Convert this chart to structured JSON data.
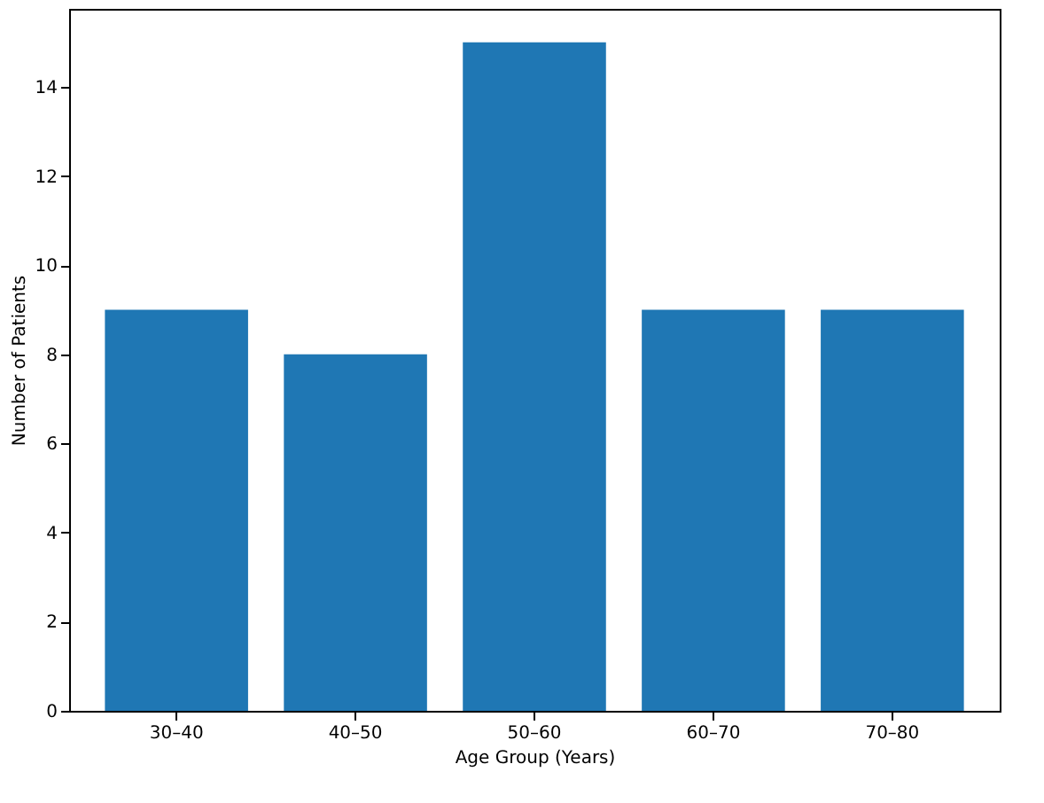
{
  "chart_data": {
    "type": "bar",
    "xlabel": "Age Group (Years)",
    "ylabel": "Number of Patients",
    "categories": [
      "30–40",
      "40–50",
      "50–60",
      "60–70",
      "70–80"
    ],
    "values": [
      9,
      8,
      15,
      9,
      9
    ],
    "color": "#1f77b4",
    "ylim": [
      0,
      15.75
    ],
    "yticks": [
      0,
      2,
      4,
      6,
      8,
      10,
      12,
      14
    ],
    "grid": false
  }
}
